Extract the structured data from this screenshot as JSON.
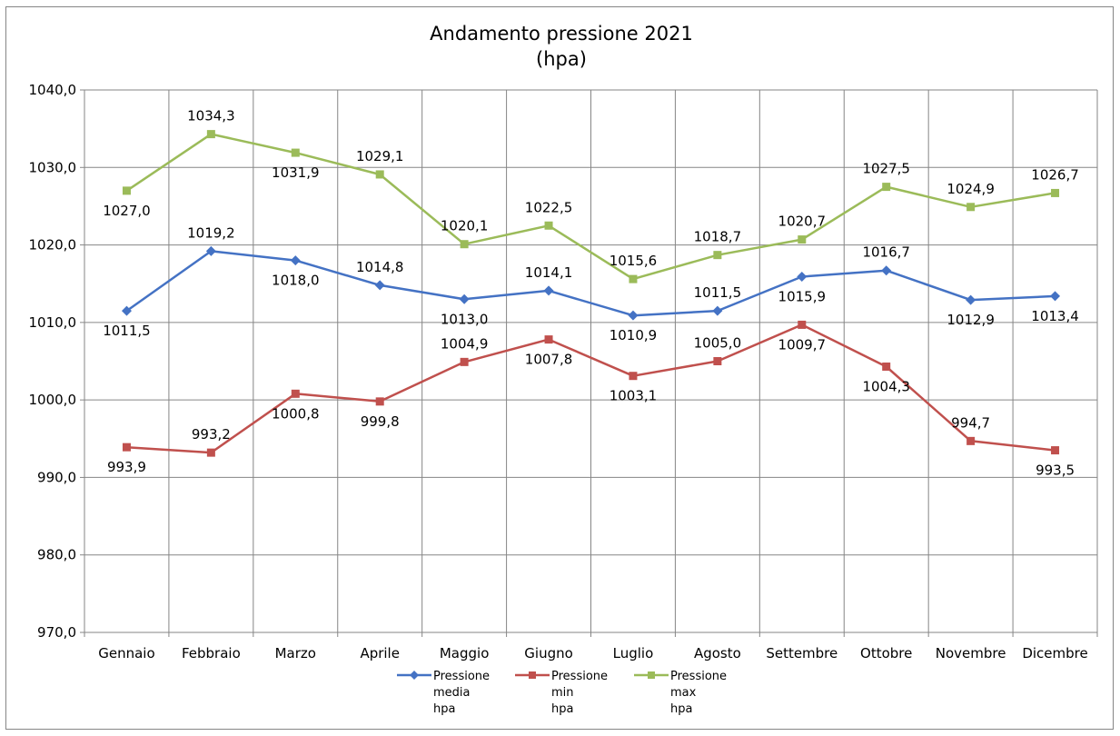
{
  "chart_data": {
    "type": "line",
    "title": [
      "Andamento pressione 2021",
      "(hpa)"
    ],
    "xlabel": "",
    "ylabel": "",
    "ylim": [
      970,
      1040
    ],
    "yticks": [
      970,
      980,
      990,
      1000,
      1010,
      1020,
      1030,
      1040
    ],
    "ytick_labels": [
      "970,0",
      "980,0",
      "990,0",
      "1000,0",
      "1010,0",
      "1020,0",
      "1030,0",
      "1040,0"
    ],
    "grid": true,
    "legend_position": "bottom",
    "categories": [
      "Gennaio",
      "Febbraio",
      "Marzo",
      "Aprile",
      "Maggio",
      "Giugno",
      "Luglio",
      "Agosto",
      "Settembre",
      "Ottobre",
      "Novembre",
      "Dicembre"
    ],
    "series": [
      {
        "name": [
          "Pressione",
          "media",
          "hpa"
        ],
        "color": "#4472C4",
        "marker": "diamond",
        "values": [
          1011.5,
          1019.2,
          1018.0,
          1014.8,
          1013.0,
          1014.1,
          1010.9,
          1011.5,
          1015.9,
          1016.7,
          1012.9,
          1013.4
        ],
        "labels": [
          "1011,5",
          "1019,2",
          "1018,0",
          "1014,8",
          "1013,0",
          "1014,1",
          "1010,9",
          "1011,5",
          "1015,9",
          "1016,7",
          "1012,9",
          "1013,4"
        ]
      },
      {
        "name": [
          "Pressione",
          "min",
          "hpa"
        ],
        "color": "#C0504D",
        "marker": "square",
        "values": [
          993.9,
          993.2,
          1000.8,
          999.8,
          1004.9,
          1007.8,
          1003.1,
          1005.0,
          1009.7,
          1004.3,
          994.7,
          993.5
        ],
        "labels": [
          "993,9",
          "993,2",
          "1000,8",
          "999,8",
          "1004,9",
          "1007,8",
          "1003,1",
          "1005,0",
          "1009,7",
          "1004,3",
          "994,7",
          "993,5"
        ]
      },
      {
        "name": [
          "Pressione",
          "max",
          "hpa"
        ],
        "color": "#9BBB59",
        "marker": "square",
        "values": [
          1027.0,
          1034.3,
          1031.9,
          1029.1,
          1020.1,
          1022.5,
          1015.6,
          1018.7,
          1020.7,
          1027.5,
          1024.9,
          1026.7
        ],
        "labels": [
          "1027,0",
          "1034,3",
          "1031,9",
          "1029,1",
          "1020,1",
          "1022,5",
          "1015,6",
          "1018,7",
          "1020,7",
          "1027,5",
          "1024,9",
          "1026,7"
        ]
      }
    ]
  }
}
